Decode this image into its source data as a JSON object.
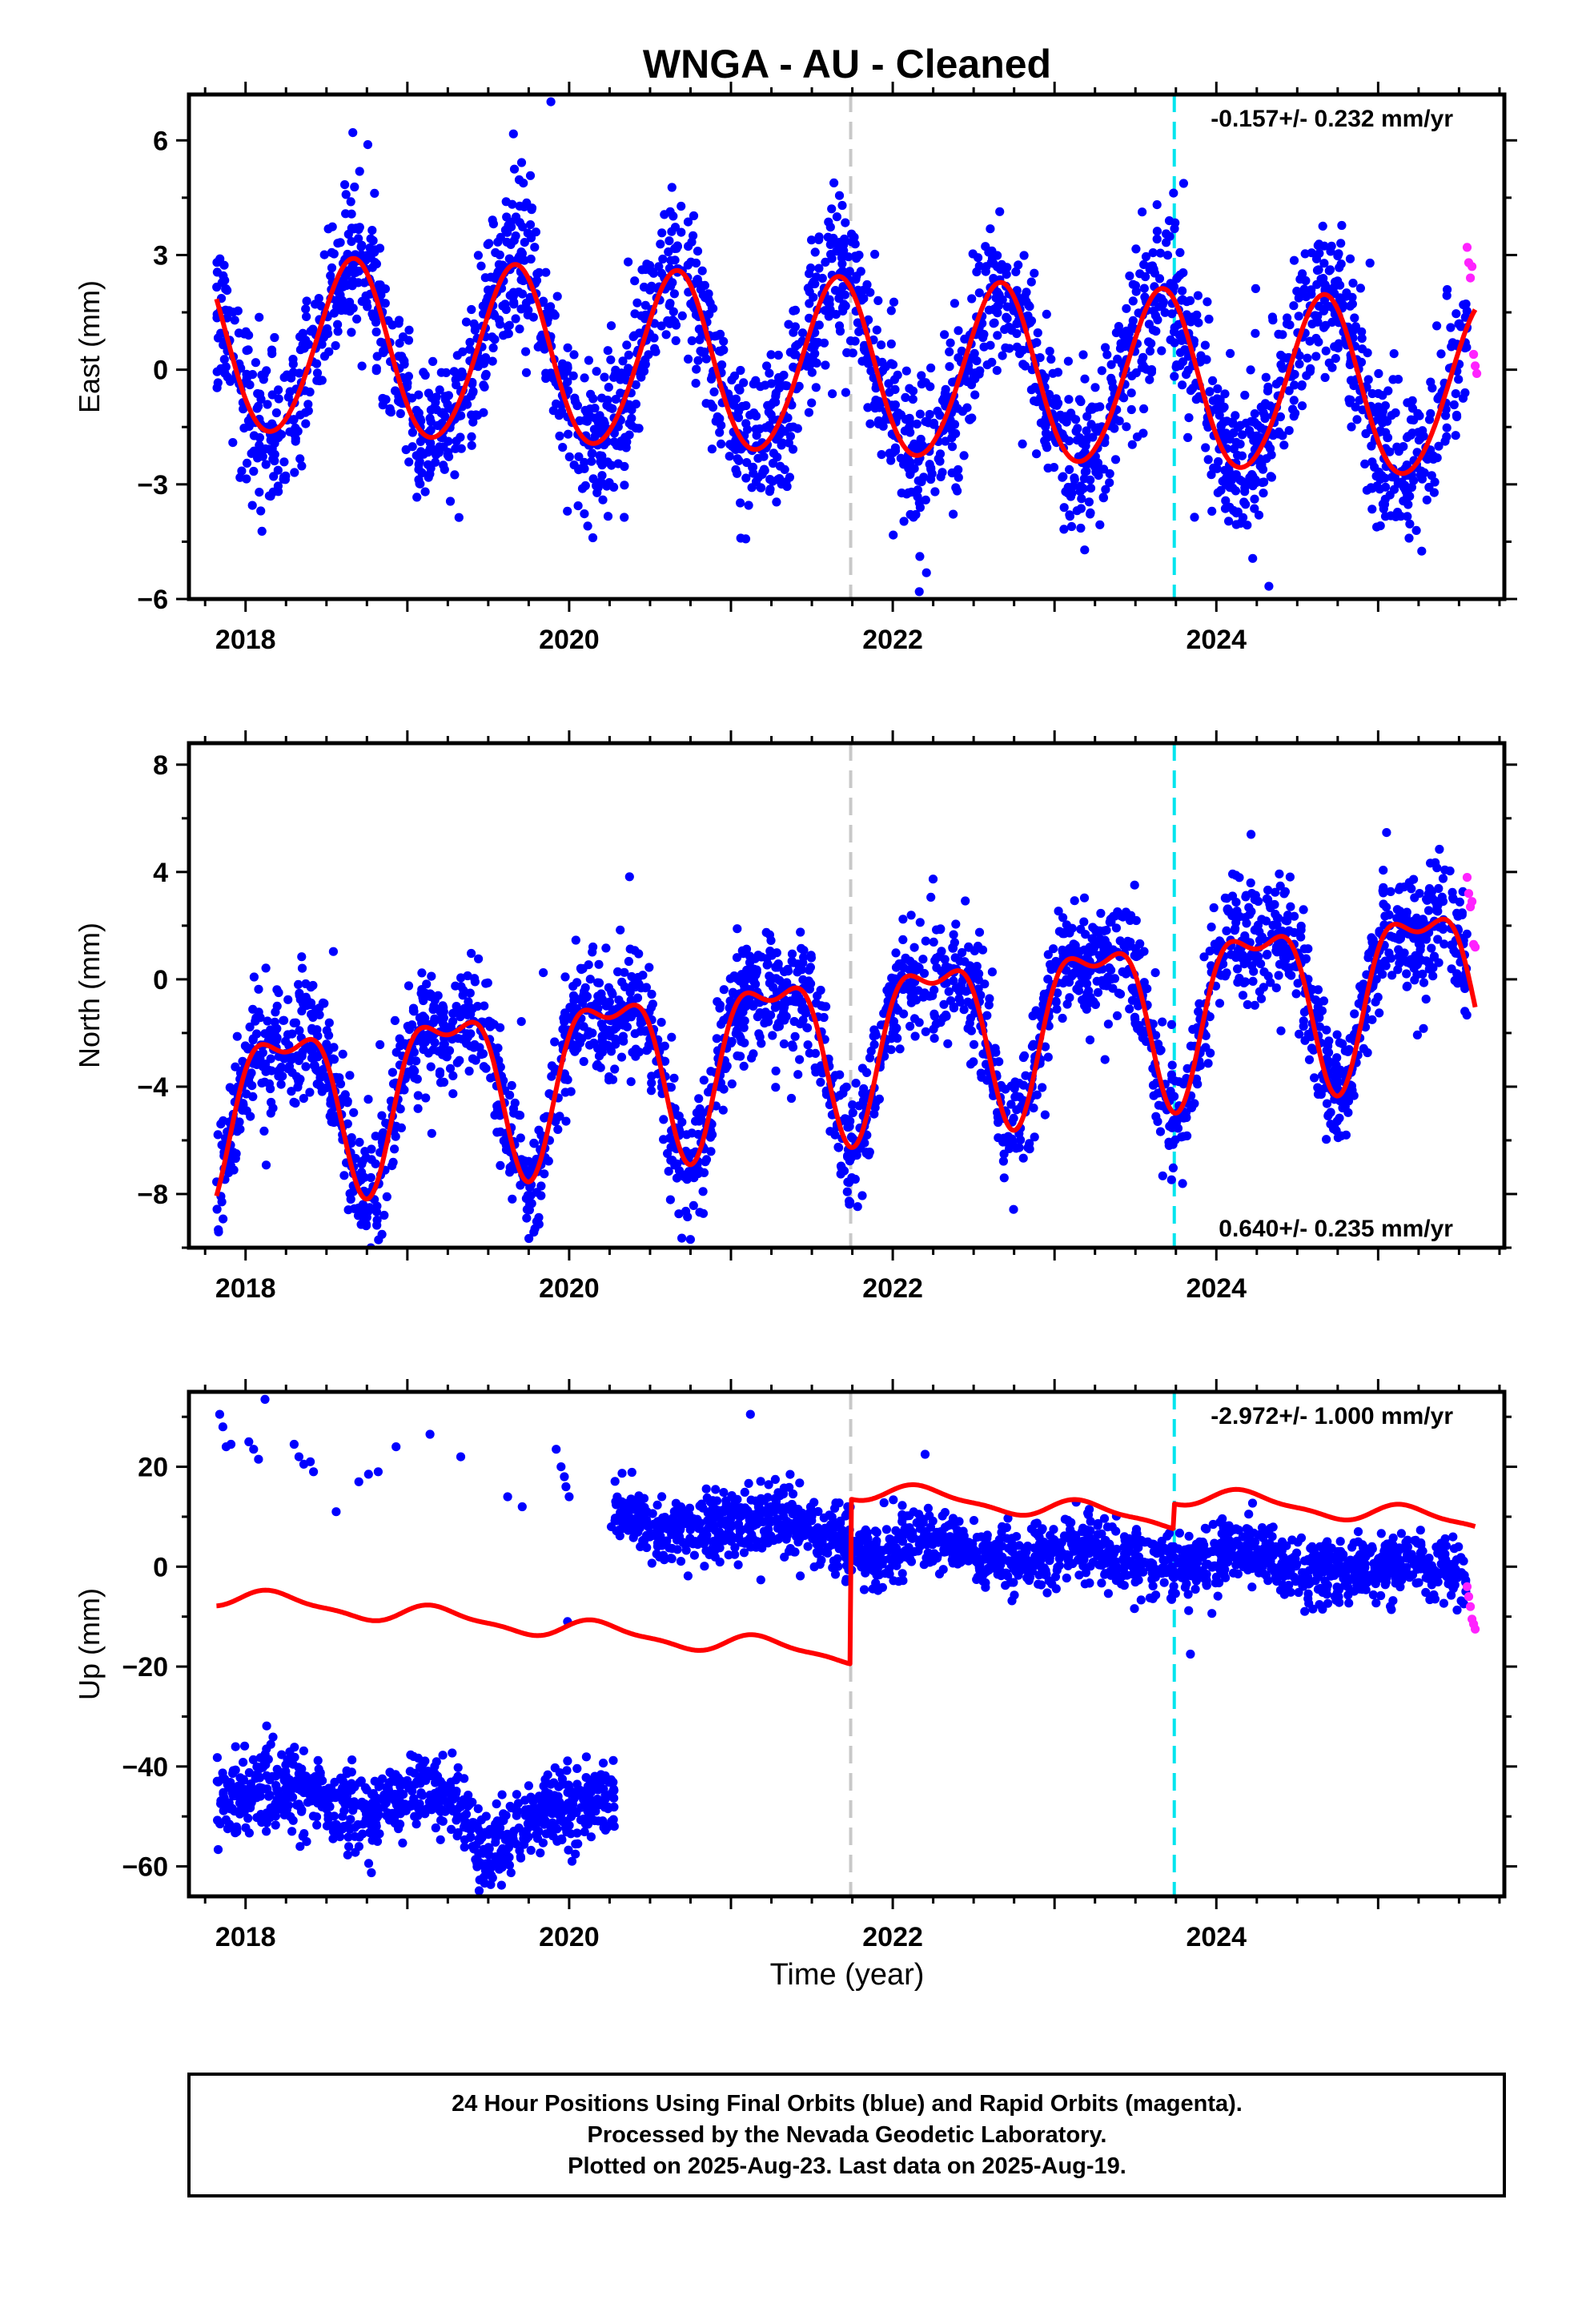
{
  "figure": {
    "title": "WNGA  - AU - Cleaned",
    "xlabel": "Time (year)",
    "footer_lines": [
      "24 Hour Positions Using Final Orbits (blue) and Rapid Orbits (magenta).",
      "Processed by the Nevada Geodetic Laboratory.",
      "Plotted on 2025-Aug-23. Last data on 2025-Aug-19."
    ]
  },
  "colors": {
    "final_orbits": "#0000ff",
    "rapid_orbits": "#ff22ff",
    "model": "#ff0000",
    "equipment_change": "#c8c8c8",
    "earthquake_marker": "#00e5ee",
    "axes": "#000000"
  },
  "chart_data": [
    {
      "type": "scatter",
      "panel": "east",
      "title": "",
      "xlabel": "",
      "ylabel": "East (mm)",
      "xlim": [
        2017.65,
        2025.78
      ],
      "ylim": [
        -6.0,
        7.2
      ],
      "xticks": [
        2018,
        2020,
        2022,
        2024
      ],
      "xtick_labels": [
        "2018",
        "2020",
        "2022",
        "2024"
      ],
      "yticks": [
        -6,
        -3,
        0,
        3,
        6
      ],
      "ytick_labels": [
        "−6",
        "−3",
        "0",
        "3",
        "6"
      ],
      "rate_label": "-0.157+/- 0.232 mm/yr",
      "rate_label_position": "top-right",
      "data_start": 2017.82,
      "data_end": 2025.55,
      "rapid_start": 2025.55,
      "vlines": [
        {
          "x": 2021.74,
          "kind": "equipment"
        },
        {
          "x": 2023.74,
          "kind": "earthquake"
        }
      ],
      "model": {
        "offset": 0.0,
        "rate": -0.157,
        "annual_amp": 2.3,
        "annual_phase": 2017.66,
        "semi_amp": 0.15,
        "semi_phase": 2017.7,
        "steps": []
      },
      "scatter": {
        "noise": 1.0,
        "rapid_values": [
          3.2,
          2.8,
          2.4,
          2.7,
          0.4,
          0.1,
          -0.1
        ]
      }
    },
    {
      "type": "scatter",
      "panel": "north",
      "title": "",
      "xlabel": "",
      "ylabel": "North (mm)",
      "xlim": [
        2017.65,
        2025.78
      ],
      "ylim": [
        -10.0,
        8.8
      ],
      "xticks": [
        2018,
        2020,
        2022,
        2024
      ],
      "xtick_labels": [
        "2018",
        "2020",
        "2022",
        "2024"
      ],
      "yticks": [
        -8,
        -4,
        0,
        4,
        8
      ],
      "ytick_labels": [
        "−8",
        "−4",
        "0",
        "4",
        "8"
      ],
      "rate_label": "0.640+/- 0.235 mm/yr",
      "rate_label_position": "bottom-right",
      "data_start": 2017.82,
      "data_end": 2025.55,
      "rapid_start": 2025.55,
      "vlines": [
        {
          "x": 2021.74,
          "kind": "equipment"
        },
        {
          "x": 2023.74,
          "kind": "earthquake"
        }
      ],
      "model": {
        "offset": -2.2,
        "rate": 0.64,
        "annual_amp": 2.9,
        "annual_phase": 2018.25,
        "semi_amp": 1.2,
        "semi_phase": 2018.0,
        "steps": []
      },
      "scatter": {
        "noise": 1.1,
        "rapid_values": [
          3.8,
          3.2,
          2.7,
          2.9,
          1.3,
          1.2
        ]
      }
    },
    {
      "type": "scatter",
      "panel": "up",
      "title": "",
      "xlabel": "Time (year)",
      "ylabel": "Up (mm)",
      "xlim": [
        2017.65,
        2025.78
      ],
      "ylim": [
        -66.0,
        35.0
      ],
      "xticks": [
        2018,
        2020,
        2022,
        2024
      ],
      "xtick_labels": [
        "2018",
        "2020",
        "2022",
        "2024"
      ],
      "yticks": [
        -60,
        -40,
        -20,
        0,
        20
      ],
      "ytick_labels": [
        "−60",
        "−40",
        "−20",
        "0",
        "20"
      ],
      "rate_label": "-2.972+/- 1.000 mm/yr",
      "rate_label_position": "top-right",
      "data_start": 2017.82,
      "data_end": 2025.55,
      "rapid_start": 2025.55,
      "vlines": [
        {
          "x": 2021.74,
          "kind": "equipment"
        },
        {
          "x": 2023.74,
          "kind": "earthquake"
        }
      ],
      "model": {
        "offset": -17.5,
        "rate": -2.972,
        "annual_amp": 1.8,
        "annual_phase": 2018.2,
        "semi_amp": 0.6,
        "semi_phase": 2018.1,
        "steps": [
          {
            "x": 2021.74,
            "size": 33.0
          },
          {
            "x": 2023.74,
            "size": 5.0
          }
        ]
      },
      "scatter": {
        "noise": 3.2,
        "rapid_values": [
          -4.0,
          -6.0,
          -8.0,
          -10.5,
          -11.5,
          -12.5
        ],
        "segments": [
          {
            "from": 2017.82,
            "to": 2020.28,
            "level": -45.0,
            "trend": -1.5,
            "noise": 4.0,
            "dip_center": 2019.5,
            "dip_depth": -9.0,
            "count": 900
          },
          {
            "from": 2020.28,
            "to": 2021.74,
            "level": 9.5,
            "trend": -1.5,
            "noise": 3.5,
            "count": 520
          },
          {
            "from": 2021.74,
            "to": 2025.55,
            "level": 4.0,
            "trend": -1.3,
            "noise": 3.2,
            "count": 1300
          }
        ],
        "outliers": [
          [
            2017.84,
            30.5
          ],
          [
            2017.86,
            28.0
          ],
          [
            2017.88,
            24.0
          ],
          [
            2017.91,
            24.5
          ],
          [
            2018.02,
            25.0
          ],
          [
            2018.05,
            23.5
          ],
          [
            2018.08,
            21.5
          ],
          [
            2018.12,
            33.5
          ],
          [
            2018.3,
            24.5
          ],
          [
            2018.33,
            22.0
          ],
          [
            2018.36,
            20.5
          ],
          [
            2018.4,
            21.0
          ],
          [
            2018.42,
            19.0
          ],
          [
            2018.56,
            11.0
          ],
          [
            2018.7,
            17.0
          ],
          [
            2018.76,
            18.5
          ],
          [
            2018.82,
            19.0
          ],
          [
            2018.93,
            24.0
          ],
          [
            2019.14,
            26.5
          ],
          [
            2019.33,
            22.0
          ],
          [
            2019.62,
            14.0
          ],
          [
            2019.71,
            12.0
          ],
          [
            2019.92,
            23.5
          ],
          [
            2019.95,
            20.0
          ],
          [
            2019.97,
            18.0
          ],
          [
            2019.98,
            16.0
          ],
          [
            2020.0,
            14.0
          ],
          [
            2019.99,
            -11.0
          ],
          [
            2020.26,
            8.0
          ],
          [
            2020.42,
            9.0
          ],
          [
            2021.12,
            30.5
          ],
          [
            2022.2,
            22.5
          ],
          [
            2023.84,
            -17.5
          ]
        ]
      }
    }
  ]
}
